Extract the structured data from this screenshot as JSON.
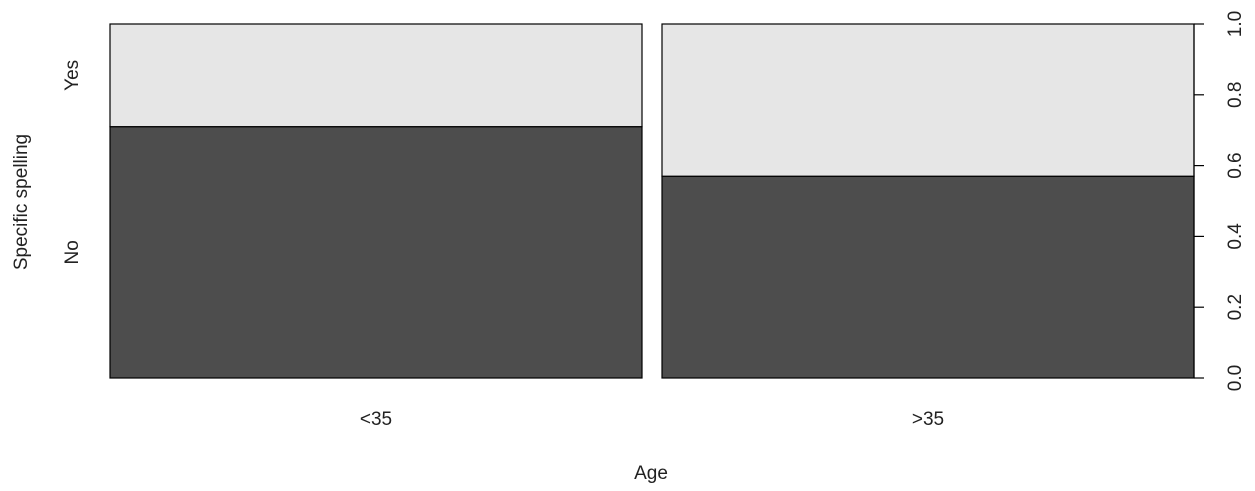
{
  "chart_data": {
    "type": "bar",
    "subtype": "spineplot",
    "xlabel": "Age",
    "ylabel": "Specific spelling",
    "categories": [
      "<35",
      ">35"
    ],
    "category_widths": [
      0.5,
      0.5
    ],
    "levels": [
      "No",
      "Yes"
    ],
    "series": [
      {
        "name": "No",
        "values": [
          0.71,
          0.57
        ],
        "color": "#4d4d4d"
      },
      {
        "name": "Yes",
        "values": [
          0.29,
          0.43
        ],
        "color": "#e6e6e6"
      }
    ],
    "ylim": [
      0,
      1
    ],
    "right_axis_ticks": [
      "0.0",
      "0.2",
      "0.4",
      "0.6",
      "0.8",
      "1.0"
    ],
    "grid": false,
    "legend": "none"
  }
}
